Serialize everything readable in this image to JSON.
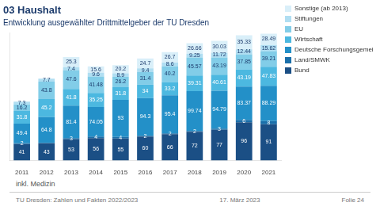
{
  "chart_data": {
    "type": "bar",
    "title": "03 Haushalt",
    "subtitle": "Entwicklung ausgewählter Drittmittelgeber der TU Dresden",
    "categories": [
      "2011",
      "2012",
      "2013",
      "2014",
      "2015",
      "2016",
      "2017",
      "2018",
      "2019",
      "2020",
      "2021"
    ],
    "series": [
      {
        "name": "Bund",
        "color": "#1b4f85",
        "values": [
          41,
          43,
          53,
          56,
          55,
          60,
          66,
          72,
          77,
          96,
          91
        ]
      },
      {
        "name": "Land/SMWK",
        "color": "#1a6faa",
        "values": [
          2,
          1,
          3,
          4,
          4,
          2,
          2,
          2,
          3,
          6,
          8
        ],
        "value_labels": [
          "2",
          null,
          "3",
          "4",
          "4",
          "2",
          "2",
          "2",
          "3",
          "6",
          "8"
        ]
      },
      {
        "name": "Deutsche Forschungsgemeinschaft",
        "color": "#2390c8",
        "values": [
          49.4,
          64.8,
          81.4,
          74.05,
          93,
          94.3,
          95.4,
          99.74,
          94.79,
          83.37,
          88.29
        ]
      },
      {
        "name": "Wirtschaft",
        "color": "#4cb8e0",
        "values": [
          31.8,
          45.2,
          41.8,
          35.25,
          31.8,
          34,
          33.2,
          39.31,
          40.61,
          43.19,
          47.83
        ]
      },
      {
        "name": "EU",
        "color": "#82cde8",
        "values": [
          16.2,
          43.8,
          47.6,
          41.48,
          26.2,
          31.4,
          40.2,
          45.57,
          43.19,
          37.85,
          39.21
        ]
      },
      {
        "name": "Stiftungen",
        "color": "#b0def2",
        "values": [
          7.3,
          7.7,
          7.4,
          9.6,
          8.9,
          9.4,
          8.6,
          9.25,
          11.72,
          12.44,
          15.62
        ]
      },
      {
        "name": "Sonstige (ab 2013)",
        "color": "#d9eff9",
        "values": [
          0,
          0,
          25.3,
          15.6,
          20.2,
          24.7,
          26.7,
          26.66,
          30.03,
          35.33,
          28.49
        ],
        "value_labels": [
          null,
          null,
          "25.3",
          "15.6",
          "20.2",
          "24.7",
          "26.7",
          "26.66",
          "30.03",
          "35.33",
          "28.49"
        ]
      }
    ],
    "ylim": [
      0,
      320
    ],
    "stacked": true,
    "data_labels": true,
    "legend": "right",
    "grid": false,
    "tick_labels": "x",
    "annotations": [
      "inkl. Medizin",
      "TU Dresden: Zahlen und Fakten 2022/2023",
      "17. März 2023",
      "Folie 24"
    ]
  }
}
